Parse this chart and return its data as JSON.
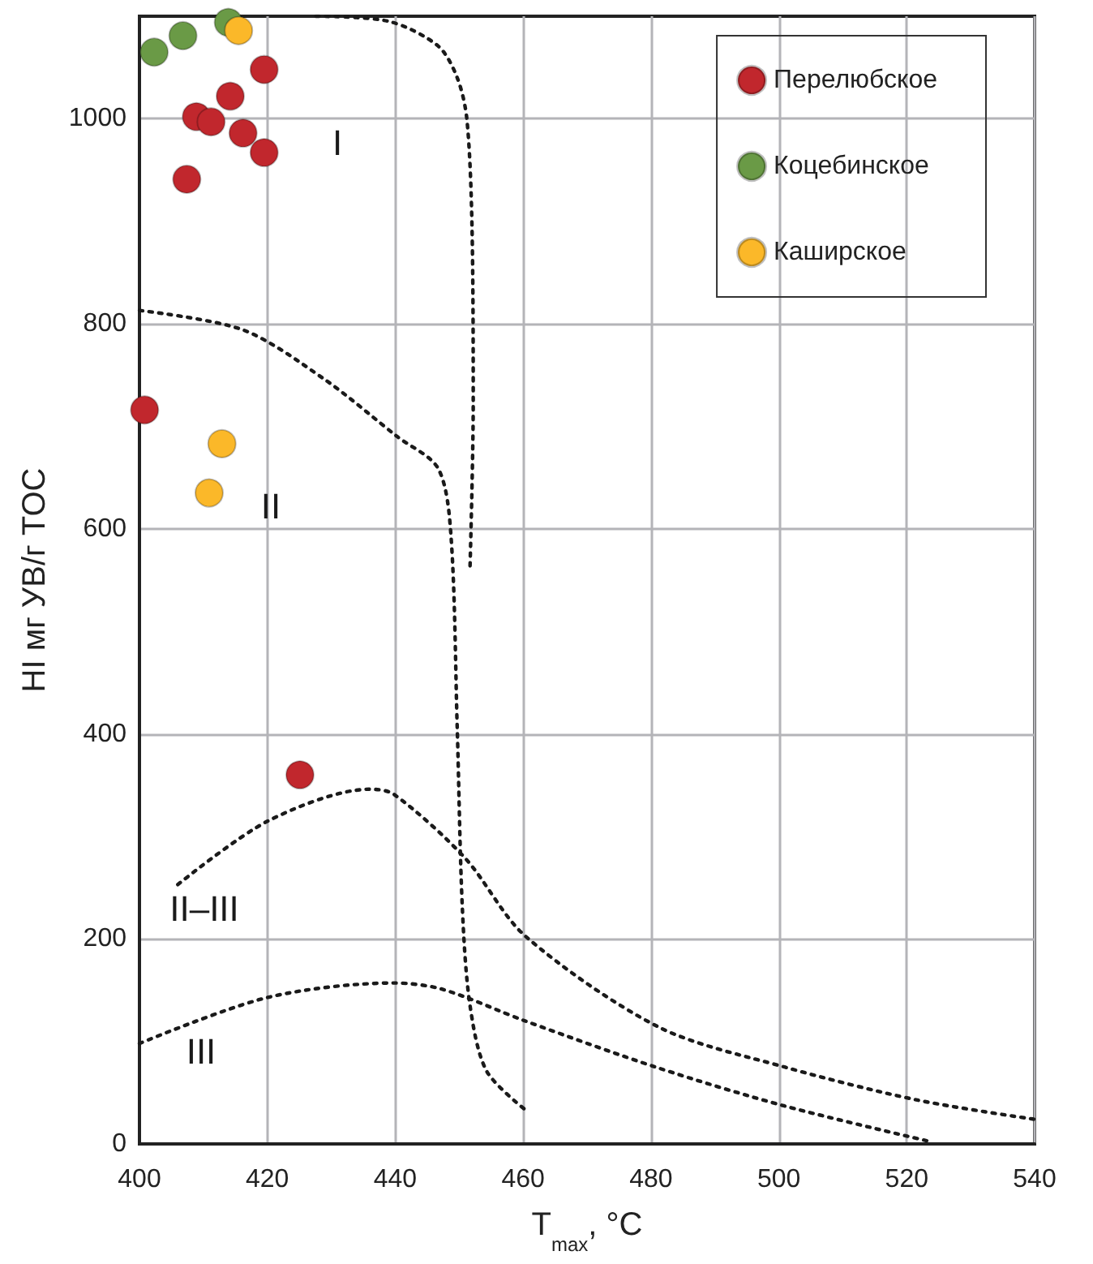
{
  "chart_data": {
    "type": "scatter",
    "xlabel": "T$_{max}$, °C",
    "ylabel": "HI мг УВ/г TOC",
    "xlim": [
      400,
      540
    ],
    "xticks": [
      400,
      420,
      440,
      460,
      480,
      500,
      520,
      540
    ],
    "ylim": [
      0,
      1100
    ],
    "yticks": [
      0,
      200,
      400,
      600,
      800,
      1000
    ],
    "grid": true,
    "legend": "top right",
    "marker": "circle",
    "series": [
      {
        "type": "line",
        "color": "#1a1a1a",
        "marker": "none",
        "line_style": "dotted",
        "x": [
          427.6,
          439,
          446.7,
          449.7,
          451.2,
          452,
          452.2,
          451.7
        ],
        "values": [
          1100,
          1095,
          1071,
          1040,
          1000,
          897,
          722,
          563
        ]
      },
      {
        "type": "line",
        "color": "#1a1a1a",
        "marker": "none",
        "line_style": "dotted",
        "x": [
          400,
          416.2,
          428.9,
          440.3,
          446.7,
          448.7,
          449.7,
          450.5,
          451.7,
          454.3,
          460.6
        ],
        "values": [
          813,
          794,
          746,
          690,
          659,
          595,
          405,
          230,
          135,
          71,
          32
        ]
      },
      {
        "type": "line",
        "color": "#1a1a1a",
        "marker": "none",
        "line_style": "dotted",
        "x": [
          406,
          420.1,
          436,
          439.8,
          450.9,
          460.3,
          481.2,
          500.9,
          521.5,
          540
        ],
        "values": [
          253,
          315,
          346,
          341,
          279,
          203,
          114,
          75,
          43,
          24
        ]
      },
      {
        "type": "line",
        "color": "#1a1a1a",
        "marker": "none",
        "line_style": "dotted",
        "x": [
          400,
          420.1,
          439.8,
          447.3,
          460.3,
          481.2,
          500.9,
          523.9
        ],
        "values": [
          98,
          143,
          157,
          151,
          120,
          74,
          37,
          2
        ]
      },
      {
        "name": "Перелюбское",
        "color": "#c1272d",
        "x": [
          419.5,
          414.2,
          408.9,
          411.2,
          416.2,
          419.5,
          407.4,
          400.8,
          425.1
        ],
        "values": [
          1048,
          1022,
          1002,
          997,
          986,
          967,
          941,
          716,
          360
        ]
      },
      {
        "name": "Коцебинское",
        "color": "#6a9a46",
        "x": [
          402.3,
          406.8,
          413.9
        ],
        "values": [
          1065,
          1081,
          1094
        ]
      },
      {
        "name": "Каширское",
        "color": "#fbb829",
        "x": [
          415.5,
          412.9,
          410.9
        ],
        "values": [
          1086,
          683,
          635
        ]
      }
    ],
    "annotations": [
      "I",
      "II",
      "II–III",
      "III"
    ]
  }
}
